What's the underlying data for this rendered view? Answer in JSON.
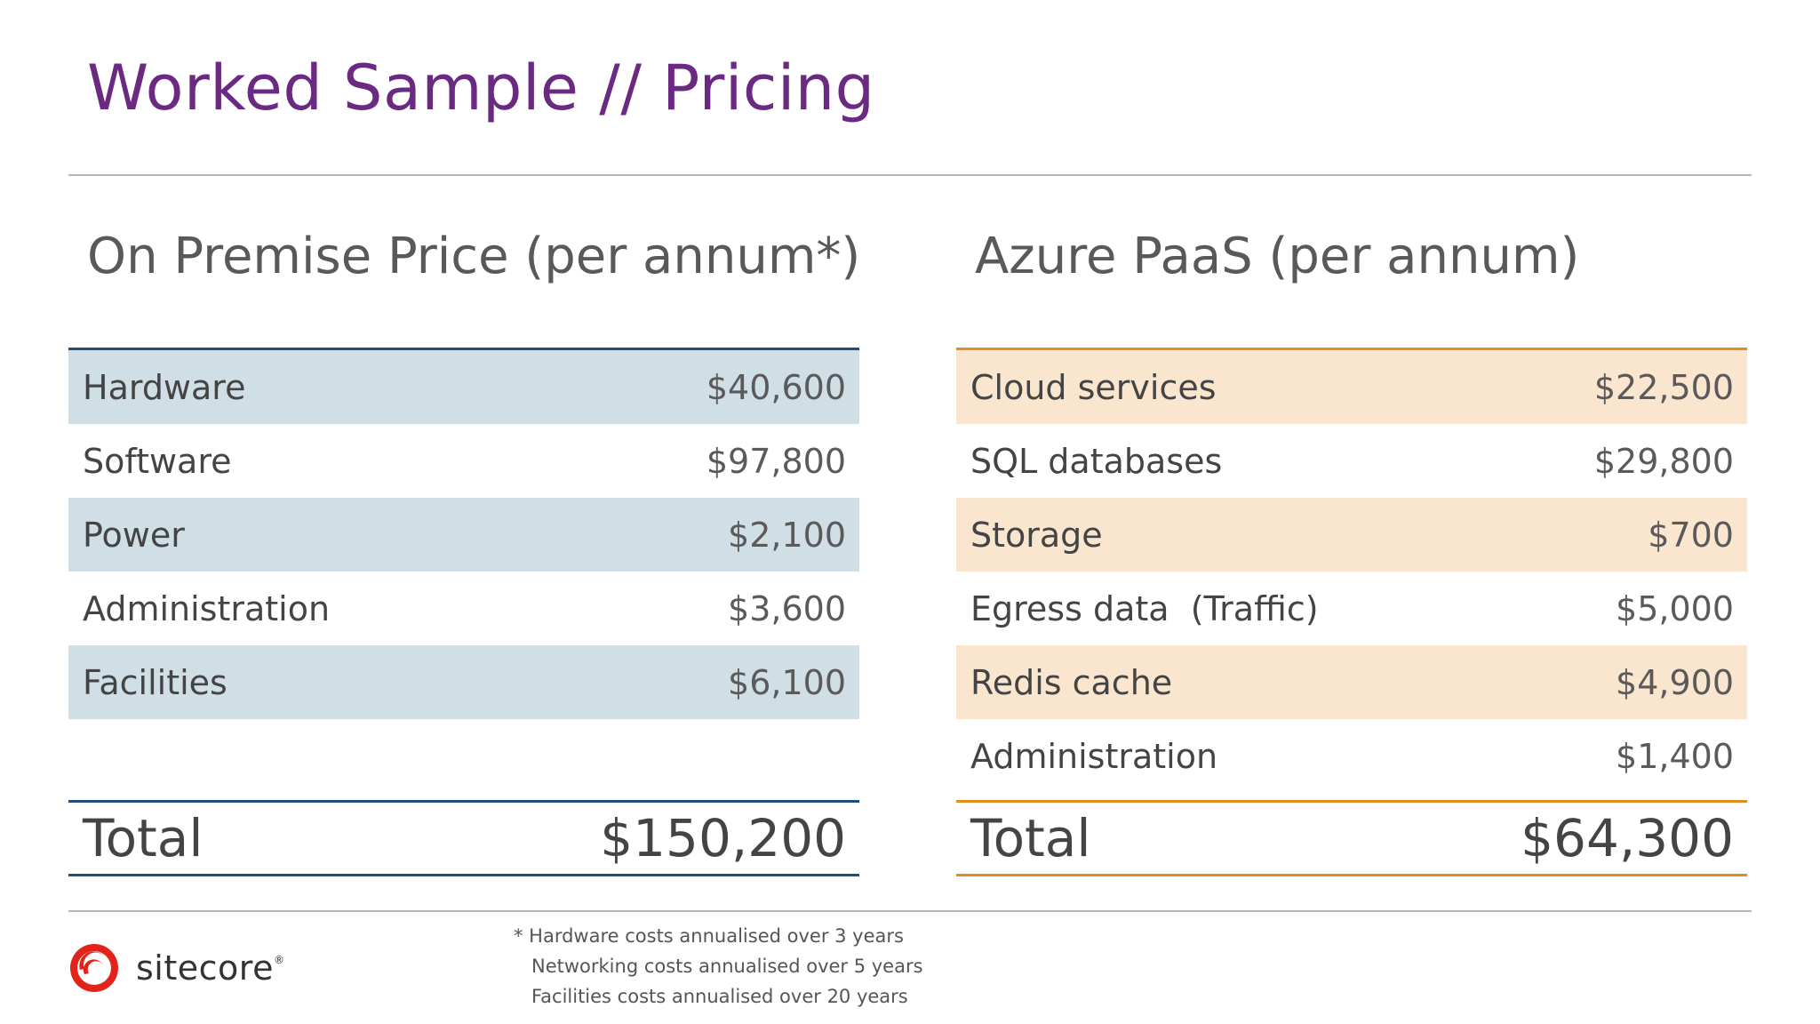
{
  "slide": {
    "title": "Worked Sample // Pricing"
  },
  "on_premise": {
    "heading": "On Premise Price (per annum*)",
    "rows": [
      {
        "label": "Hardware",
        "amount": "$40,600"
      },
      {
        "label": "Software",
        "amount": "$97,800"
      },
      {
        "label": "Power",
        "amount": "$2,100"
      },
      {
        "label": "Administration",
        "amount": "$3,600"
      },
      {
        "label": "Facilities",
        "amount": "$6,100"
      }
    ],
    "total_label": "Total",
    "total_amount": "$150,200",
    "accent": "#1f4e79",
    "shade": "#d0dee6"
  },
  "azure": {
    "heading": "Azure PaaS (per annum)",
    "rows": [
      {
        "label": "Cloud services",
        "amount": "$22,500"
      },
      {
        "label": "SQL databases",
        "amount": "$29,800"
      },
      {
        "label": "Storage",
        "amount": "$700"
      },
      {
        "label": "Egress data  (Traffic)",
        "amount": "$5,000"
      },
      {
        "label": "Redis cache",
        "amount": "$4,900"
      },
      {
        "label": "Administration",
        "amount": "$1,400"
      }
    ],
    "total_label": "Total",
    "total_amount": "$64,300",
    "accent": "#e08f1c",
    "shade": "#fae6cf"
  },
  "footnotes": [
    "* Hardware costs annualised over 3 years",
    "Networking costs annualised over 5 years",
    "Facilities costs annualised over 20 years"
  ],
  "logo": {
    "text": "sitecore",
    "mark": "®",
    "icon": "sitecore-logo-icon",
    "color": "#e2231a"
  }
}
